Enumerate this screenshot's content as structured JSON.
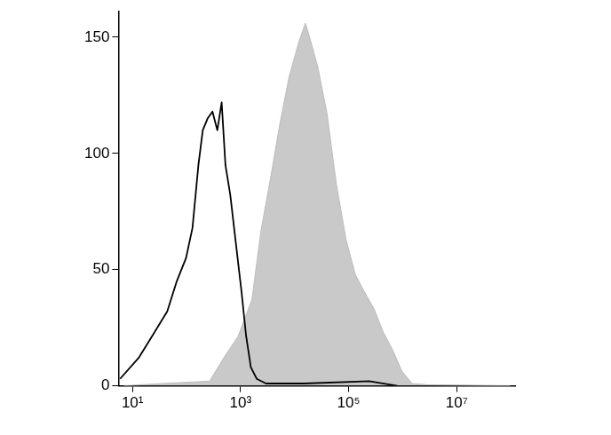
{
  "chart_data": {
    "type": "line",
    "log": "x",
    "grid": false,
    "xlim": [
      5.5,
      120000000
    ],
    "xticks": [
      {
        "value": 10,
        "label": "10¹"
      },
      {
        "value": 1000,
        "label": "10³"
      },
      {
        "value": 100000,
        "label": "10⁵"
      },
      {
        "value": 10000000,
        "label": "10⁷"
      }
    ],
    "ylim": [
      0,
      161
    ],
    "yticks": [
      0,
      50,
      100,
      150
    ],
    "series": [
      {
        "type": "area",
        "color": "#c0c0c0",
        "x": [
          7,
          36,
          269,
          490,
          891,
          1622,
          2399,
          3631,
          5370,
          7943,
          12023,
          15849,
          19953,
          26915,
          39811,
          58884,
          89125,
          131826,
          199526,
          295121,
          436516,
          660693,
          977237,
          1479108,
          2691535,
          97723722
        ],
        "values": [
          0,
          1,
          2,
          12,
          21,
          37,
          67,
          90,
          113,
          133,
          148,
          156,
          148,
          137,
          117,
          87,
          63,
          48,
          40,
          33,
          23,
          15,
          6,
          1,
          0.5,
          0
        ]
      },
      {
        "type": "line",
        "color": "#000000",
        "x": [
          5.9,
          13,
          24,
          44,
          66,
          98,
          129,
          166,
          200,
          245,
          302,
          372,
          447,
          525,
          646,
          813,
          1047,
          1259,
          1549,
          1995,
          2951,
          14791,
          239883,
          794328
        ],
        "values": [
          3,
          12,
          22,
          32,
          45,
          55,
          68,
          95,
          110,
          115,
          118,
          110,
          122,
          95,
          82,
          62,
          40,
          22,
          8,
          3,
          1,
          1,
          2,
          0
        ]
      }
    ]
  }
}
